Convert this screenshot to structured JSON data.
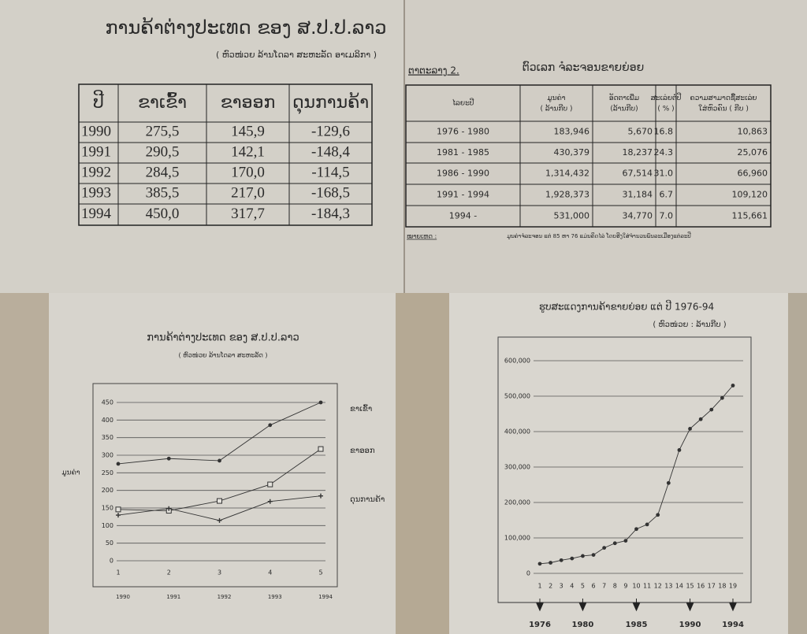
{
  "header": {
    "title": "ການຄ້າຕ່າງປະເທດ ຂອງ ສ.ປ.ປ.ລາວ",
    "subtitle": "( ຫົວໜ່ວຍ ລ້ານໂດລາ ສະຫະລັດ ອາເມລິກາ )"
  },
  "tables": {
    "trade": {
      "header": [
        [
          "ປີ"
        ],
        [
          "ຂາເຂົ້າ"
        ],
        [
          "ຂາອອກ"
        ],
        [
          "ດຸນການຄ້າ"
        ]
      ],
      "rows": [
        [
          "1990",
          "275,5",
          "145,9",
          "-129,6"
        ],
        [
          "1991",
          "290,5",
          "142,1",
          "-148,4"
        ],
        [
          "1992",
          "284,5",
          "170,0",
          "-114,5"
        ],
        [
          "1993",
          "385,5",
          "217,0",
          "-168,5"
        ],
        [
          "1994",
          "450,0",
          "317,7",
          "-184,3"
        ]
      ]
    },
    "retail": {
      "label": "ຕາຕະລາງ 2.",
      "title": "ຕົວເລກ ຈໍລະຈອນຂາຍຍ່ອຍ",
      "header": [
        [
          "ໄລຍະປີ"
        ],
        [
          "ມູນຄ່າ",
          "( ລ້ານກີບ )"
        ],
        [
          "ອັດຕາເພີ່ມ",
          "(ລ້ານກີບ)"
        ],
        [
          "ສະເລ່ຍຕໍ່ປີ",
          "( % )"
        ],
        [
          "ຄວາມສາມາດຊື້ສະເລ່ຍ",
          "ໃສ່ຫົວຄົນ ( ກີບ )"
        ]
      ],
      "rows": [
        [
          "1976 - 1980",
          "183,946",
          "5,670",
          "16.8",
          "10,863"
        ],
        [
          "1981 - 1985",
          "430,379",
          "18,237",
          "24.3",
          "25,076"
        ],
        [
          "1986 - 1990",
          "1,314,432",
          "67,514",
          "31.0",
          "66,960"
        ],
        [
          "1991 - 1994",
          "1,928,373",
          "31,184",
          "6.7",
          "109,120"
        ],
        [
          "1994 -",
          "531,000",
          "34,770",
          "7.0",
          "115,661"
        ]
      ],
      "note_label": "ໝາຍເຫດ :",
      "note": "ມູນຄ່າຈໍລະຈອນ ແຕ່ 85 ຫາ 76 ແມ່ນຄິດໄລ່ ໂດຍອີງໃສ່ຈຳນວນພົນລະເມືອງແຕ່ລະປີ"
    }
  },
  "chart_data": [
    {
      "type": "line",
      "title": "ການຄ້າຕ່າງປະເທດ ຂອງ ສ.ປ.ປ.ລາວ",
      "subtitle": "( ຫົວໜ່ວຍ ລ້ານໂດລາ ສະຫະລັດ )",
      "y_label": "ມູນຄ່າ",
      "x": [
        1,
        2,
        3,
        4,
        5
      ],
      "x_labels": [
        "1990",
        "1991",
        "1992",
        "1993",
        "1994"
      ],
      "xlim": [
        1,
        5
      ],
      "ylim": [
        0,
        450
      ],
      "yticks": [
        0,
        50,
        100,
        150,
        200,
        250,
        300,
        350,
        400,
        450
      ],
      "grid": true,
      "series": [
        {
          "name": "ຂາເຂົ້າ",
          "color": "#333333",
          "marker": "dot",
          "values": [
            275.5,
            290.5,
            284.5,
            385.5,
            450.0
          ]
        },
        {
          "name": "ຂາອອກ",
          "color": "#333333",
          "marker": "square",
          "values": [
            145.9,
            142.1,
            170.0,
            217.0,
            317.7
          ]
        },
        {
          "name": "ດຸນການຄ້າ",
          "color": "#333333",
          "marker": "plus",
          "values": [
            129.6,
            148.4,
            114.5,
            168.5,
            184.3
          ]
        }
      ]
    },
    {
      "type": "line",
      "title": "ຮູບສະແດງການຄ້າຂາຍຍ່ອຍ ແຕ່ ປີ 1976-94",
      "subtitle": "( ຫົວໜ່ວຍ : ລ້ານກີບ )",
      "x": [
        1,
        2,
        3,
        4,
        5,
        6,
        7,
        8,
        9,
        10,
        11,
        12,
        13,
        14,
        15,
        16,
        17,
        18,
        19
      ],
      "xlim": [
        1,
        19
      ],
      "ylim": [
        0,
        600000
      ],
      "yticks": [
        0,
        {
          "value": 100000,
          "label": "100,000"
        },
        {
          "value": 200000,
          "label": "200,000"
        },
        {
          "value": 300000,
          "label": "300,000"
        },
        {
          "value": 400000,
          "label": "400,000"
        },
        {
          "value": 500000,
          "label": "500,000"
        },
        {
          "value": 600000,
          "label": "600,000"
        }
      ],
      "grid": true,
      "series": [
        {
          "name": null,
          "color": "#333333",
          "marker": "dot",
          "values": [
            27000,
            30000,
            37000,
            42000,
            49000,
            52000,
            72000,
            85000,
            92000,
            125000,
            138000,
            165000,
            255000,
            348000,
            408000,
            435000,
            462000,
            495000,
            530000
          ]
        }
      ],
      "year_markers": {
        "x": [
          1,
          5,
          10,
          15,
          19
        ],
        "labels": [
          "1976",
          "1980",
          "1985",
          "1990",
          "1994"
        ]
      }
    }
  ]
}
